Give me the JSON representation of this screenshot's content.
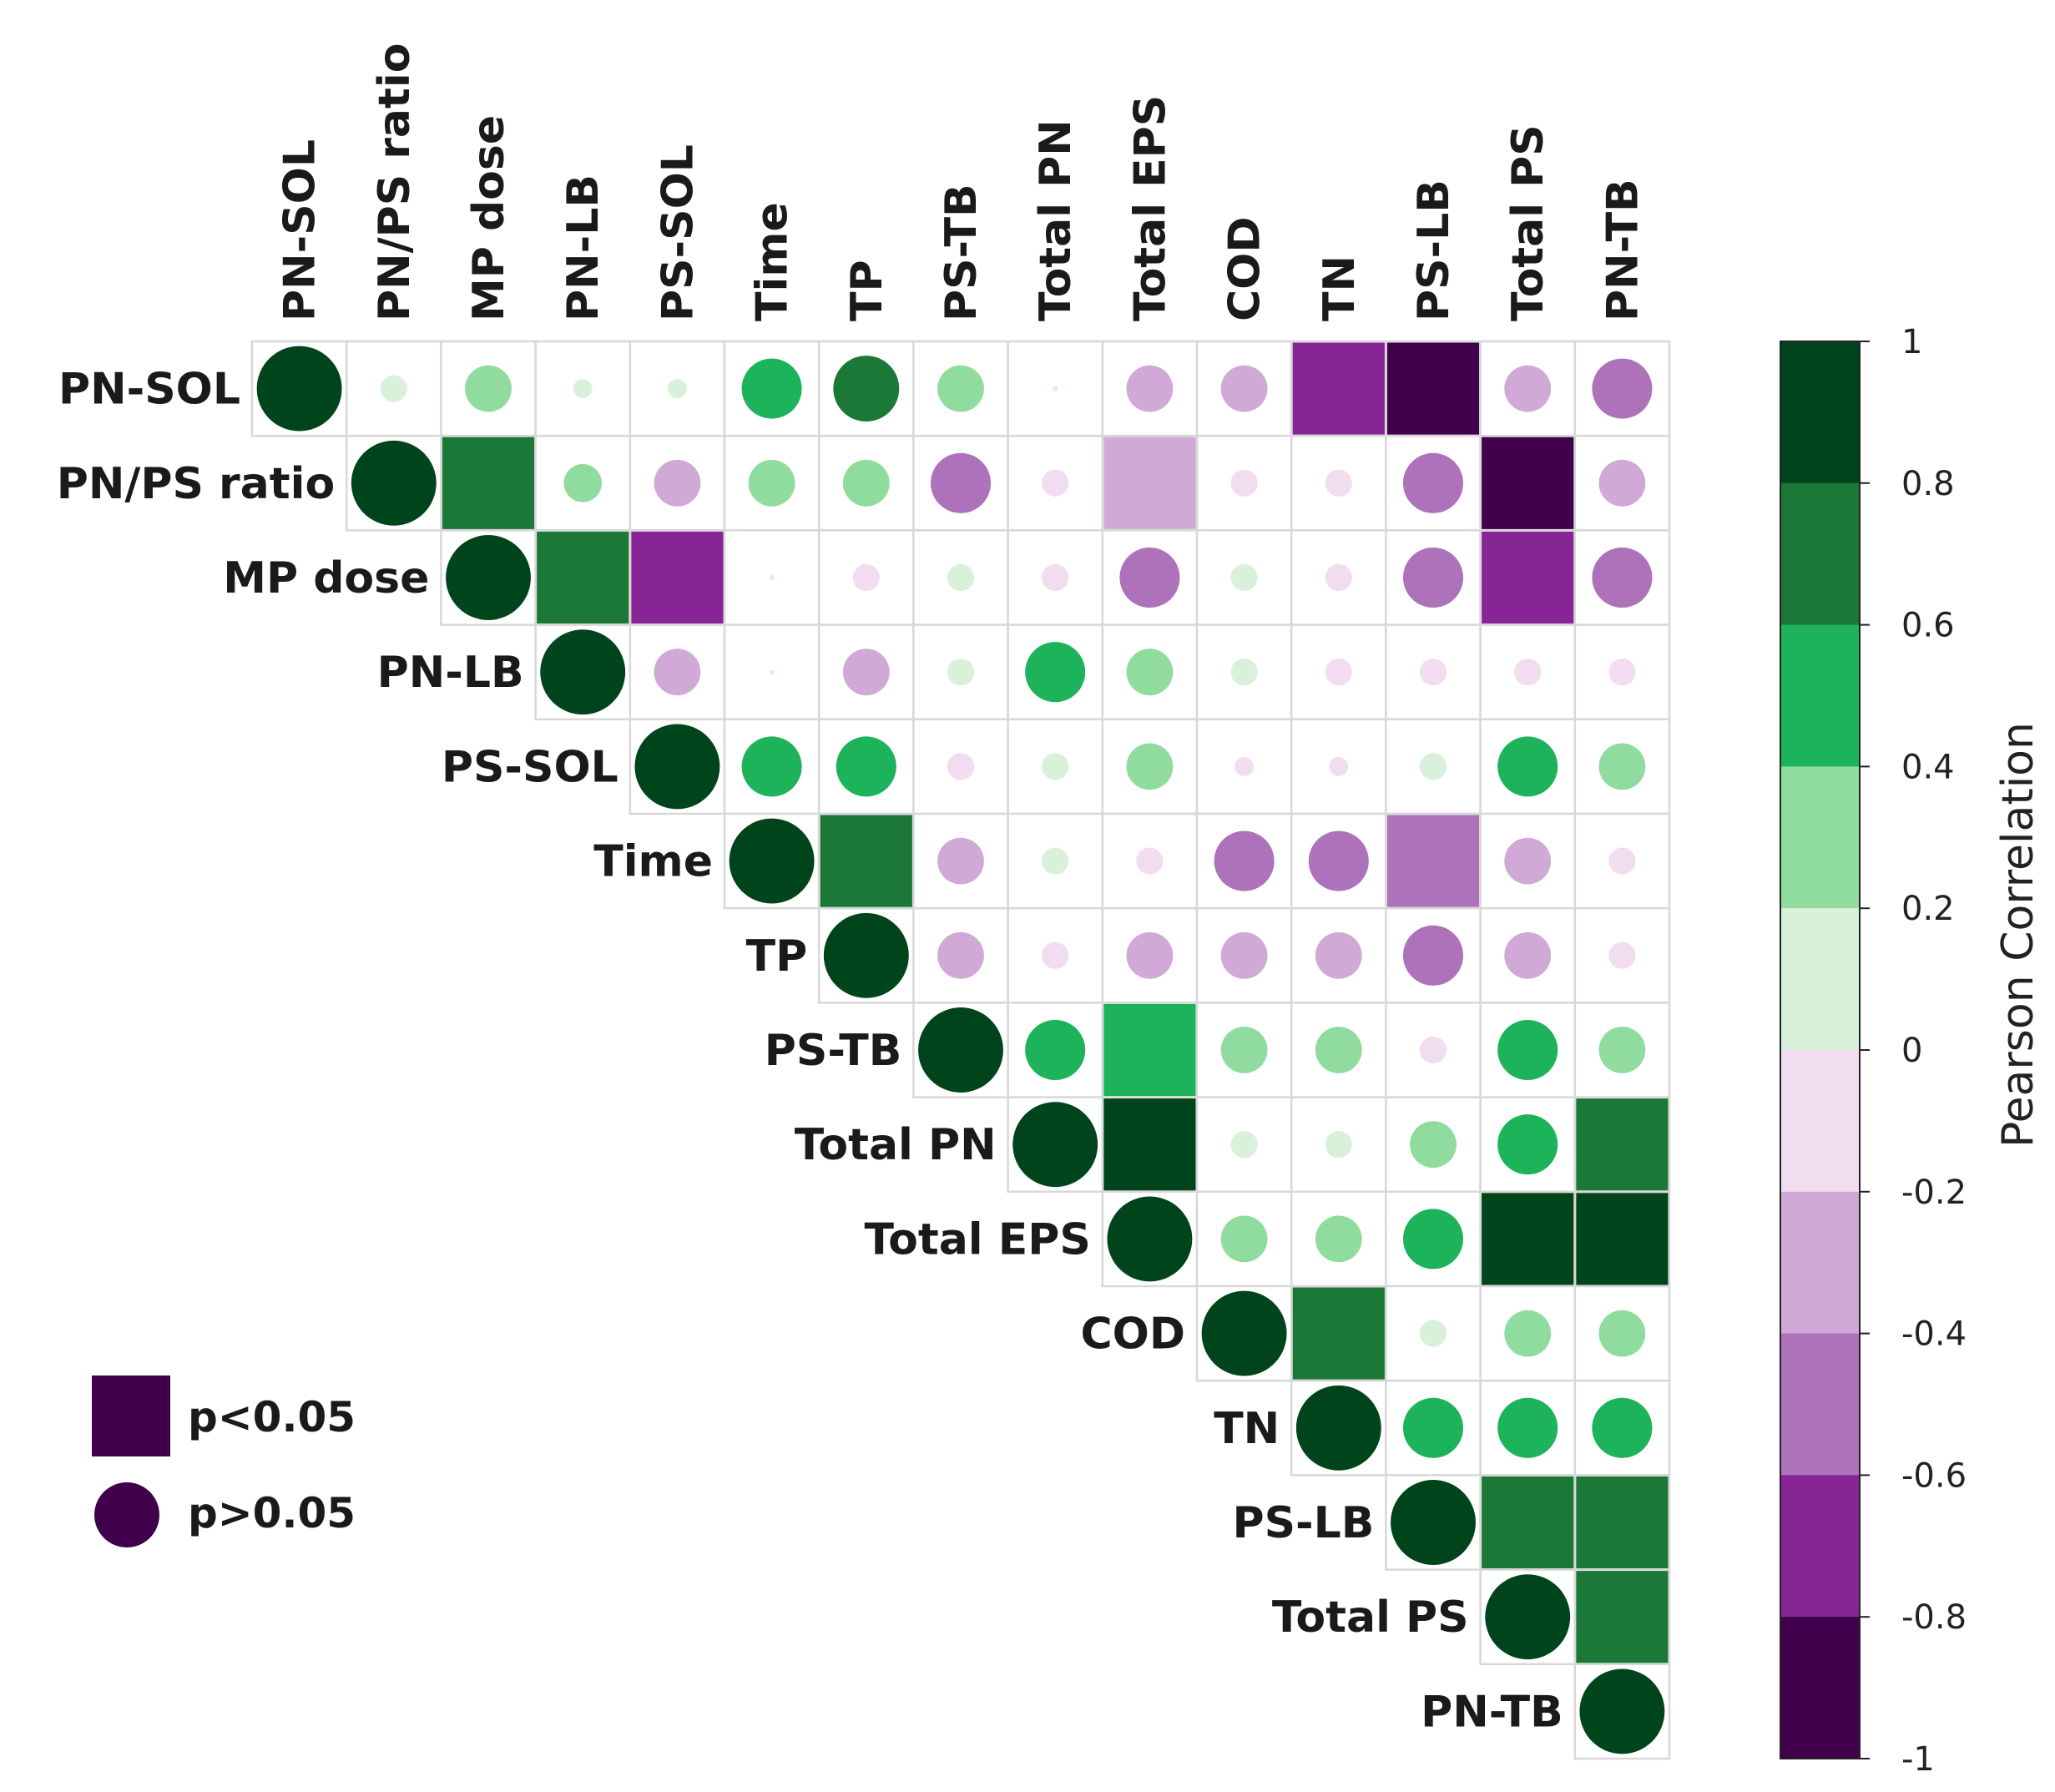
{
  "chart_data": {
    "type": "correlation-matrix",
    "title": "",
    "variables": [
      "PN-SOL",
      "PN/PS ratio",
      "MP dose",
      "PN-LB",
      "PS-SOL",
      "Time",
      "TP",
      "PS-TB",
      "Total PN",
      "Total EPS",
      "COD",
      "TN",
      "PS-LB",
      "Total PS",
      "PN-TB"
    ],
    "matrix_layout": "upper-triangle",
    "rows": [
      {
        "var": "PN-SOL",
        "values": [
          1,
          0.1,
          0.3,
          0.05,
          0.05,
          0.5,
          0.6,
          0.3,
          0,
          -0.3,
          -0.3,
          -0.7,
          -0.9,
          -0.3,
          -0.5
        ],
        "significant": [
          false,
          false,
          false,
          false,
          false,
          false,
          false,
          false,
          false,
          false,
          false,
          true,
          true,
          false,
          false
        ]
      },
      {
        "var": "PN/PS ratio",
        "values": [
          1,
          0.7,
          0.2,
          -0.3,
          0.3,
          0.3,
          -0.5,
          -0.1,
          -0.4,
          -0.1,
          -0.1,
          -0.5,
          -0.9,
          -0.3
        ],
        "significant": [
          false,
          true,
          false,
          false,
          false,
          false,
          false,
          false,
          true,
          false,
          false,
          false,
          true,
          false
        ]
      },
      {
        "var": "MP dose",
        "values": [
          1,
          0.7,
          -0.7,
          0,
          -0.1,
          0.1,
          -0.1,
          -0.5,
          0.1,
          -0.1,
          -0.5,
          -0.7,
          -0.5
        ],
        "significant": [
          false,
          true,
          true,
          false,
          false,
          false,
          false,
          false,
          false,
          false,
          false,
          true,
          false
        ]
      },
      {
        "var": "PN-LB",
        "values": [
          1,
          -0.3,
          0,
          -0.3,
          0.1,
          0.5,
          0.3,
          0.1,
          -0.1,
          -0.1,
          -0.1,
          -0.1
        ],
        "significant": [
          false,
          false,
          false,
          false,
          false,
          false,
          false,
          false,
          false,
          false,
          false,
          false
        ]
      },
      {
        "var": "PS-SOL",
        "values": [
          1,
          0.5,
          0.5,
          -0.1,
          0.1,
          0.3,
          -0.05,
          -0.05,
          0.1,
          0.5,
          0.3
        ],
        "significant": [
          false,
          false,
          false,
          false,
          false,
          false,
          false,
          false,
          false,
          false,
          false
        ]
      },
      {
        "var": "Time",
        "values": [
          1,
          0.7,
          -0.3,
          0.1,
          -0.1,
          -0.5,
          -0.5,
          -0.5,
          -0.3,
          -0.1
        ],
        "significant": [
          false,
          true,
          false,
          false,
          false,
          false,
          false,
          true,
          false,
          false
        ]
      },
      {
        "var": "TP",
        "values": [
          1,
          -0.3,
          -0.1,
          -0.3,
          -0.3,
          -0.3,
          -0.5,
          -0.3,
          -0.1
        ],
        "significant": [
          false,
          false,
          false,
          false,
          false,
          false,
          false,
          false,
          false
        ]
      },
      {
        "var": "PS-TB",
        "values": [
          1,
          0.5,
          0.5,
          0.3,
          0.3,
          -0.1,
          0.5,
          0.3
        ],
        "significant": [
          false,
          false,
          true,
          false,
          false,
          false,
          false,
          false
        ]
      },
      {
        "var": "Total PN",
        "values": [
          1,
          0.9,
          0.1,
          0.1,
          0.3,
          0.5,
          0.7
        ],
        "significant": [
          false,
          true,
          false,
          false,
          false,
          false,
          true
        ]
      },
      {
        "var": "Total EPS",
        "values": [
          1,
          0.3,
          0.3,
          0.5,
          0.9,
          0.9
        ],
        "significant": [
          false,
          false,
          false,
          false,
          true,
          true
        ]
      },
      {
        "var": "COD",
        "values": [
          1,
          0.7,
          0.1,
          0.3,
          0.3
        ],
        "significant": [
          false,
          true,
          false,
          false,
          false
        ]
      },
      {
        "var": "TN",
        "values": [
          1,
          0.5,
          0.5,
          0.5
        ],
        "significant": [
          false,
          false,
          false,
          false
        ]
      },
      {
        "var": "PS-LB",
        "values": [
          1,
          0.7,
          0.7
        ],
        "significant": [
          false,
          true,
          true
        ]
      },
      {
        "var": "Total PS",
        "values": [
          1,
          0.7
        ],
        "significant": [
          false,
          true
        ]
      },
      {
        "var": "PN-TB",
        "values": [
          1
        ],
        "significant": [
          false
        ]
      }
    ],
    "colorbar": {
      "label": "Pearson Correlation",
      "range": [
        -1,
        1
      ],
      "ticks": [
        "1",
        "0.8",
        "0.6",
        "0.4",
        "0.2",
        "0",
        "-0.2",
        "-0.4",
        "-0.6",
        "-0.8",
        "-1"
      ],
      "bins": [
        {
          "from": 0.8,
          "to": 1.0,
          "color": "#00441b"
        },
        {
          "from": 0.6,
          "to": 0.8,
          "color": "#1b7837"
        },
        {
          "from": 0.4,
          "to": 0.6,
          "color": "#1db35a"
        },
        {
          "from": 0.2,
          "to": 0.4,
          "color": "#8fdc9e"
        },
        {
          "from": 0.0,
          "to": 0.2,
          "color": "#d9f1da"
        },
        {
          "from": -0.2,
          "to": 0.0,
          "color": "#f2dcef"
        },
        {
          "from": -0.4,
          "to": -0.2,
          "color": "#d0a9d6"
        },
        {
          "from": -0.6,
          "to": -0.4,
          "color": "#ad72ba"
        },
        {
          "from": -0.8,
          "to": -0.6,
          "color": "#882596"
        },
        {
          "from": -1.0,
          "to": -0.8,
          "color": "#40004b"
        }
      ]
    },
    "legend": {
      "position": "bottom-left",
      "items": [
        {
          "shape": "square",
          "label": "p<0.05"
        },
        {
          "shape": "circle",
          "label": "p>0.05"
        }
      ],
      "color": "#40004b"
    }
  }
}
